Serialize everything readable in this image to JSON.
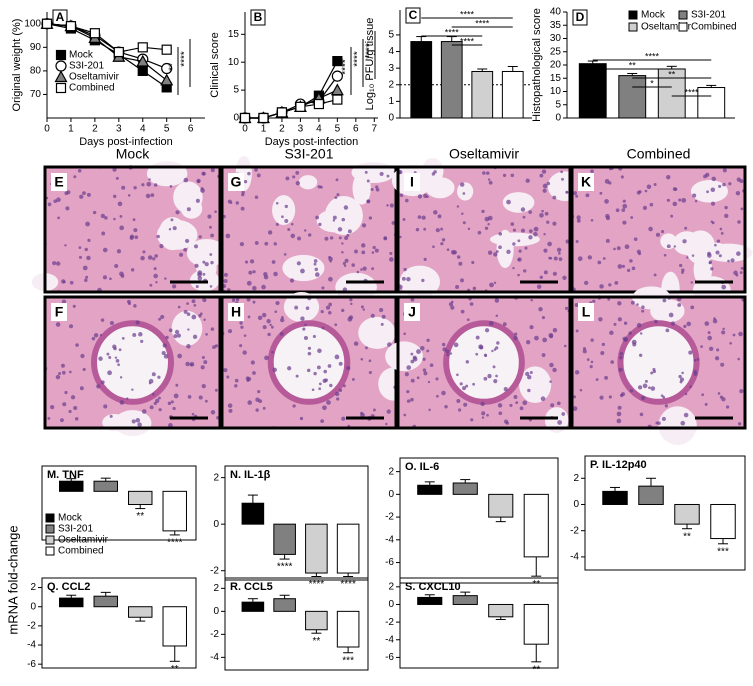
{
  "groups": [
    {
      "name": "Mock",
      "color": "#000000"
    },
    {
      "name": "S3I-201",
      "color": "#808080"
    },
    {
      "name": "Oseltamivir",
      "color": "#d0d0d0"
    },
    {
      "name": "Combined",
      "color": "#ffffff"
    }
  ],
  "histology": {
    "columns": [
      "Mock",
      "S3I-201",
      "Oseltamivir",
      "Combined"
    ],
    "panels": [
      [
        "E",
        "G",
        "I",
        "K"
      ],
      [
        "F",
        "H",
        "J",
        "L"
      ]
    ]
  },
  "bottom_ylabel": "mRNA fold-change",
  "chart_data": [
    {
      "type": "line",
      "panel": "A",
      "ylabel": "Original weight (%)",
      "xlabel": "Days post-infection",
      "x": [
        0,
        1,
        2,
        3,
        4,
        5
      ],
      "xlim": [
        0,
        6.6
      ],
      "xticks": [
        0,
        1,
        2,
        3,
        4,
        5,
        6
      ],
      "ylim": [
        60,
        105
      ],
      "yticks": [
        70,
        80,
        90,
        100
      ],
      "legend": "center-left",
      "series": [
        {
          "name": "Mock",
          "color": "#000000",
          "marker": "square-filled",
          "values": [
            100,
            98,
            93,
            87,
            80,
            73
          ]
        },
        {
          "name": "S3I-201",
          "color": "#000000",
          "marker": "circle-open",
          "values": [
            100,
            99,
            95,
            88,
            85,
            81
          ]
        },
        {
          "name": "Oseltamivir",
          "color": "#808080",
          "marker": "triangle-filled",
          "values": [
            100,
            99,
            94,
            86,
            84,
            76
          ]
        },
        {
          "name": "Combined",
          "color": "#000000",
          "marker": "square-open",
          "values": [
            100,
            99,
            96,
            88,
            90,
            89
          ]
        }
      ],
      "annotations": [
        "**",
        "****"
      ]
    },
    {
      "type": "line",
      "panel": "B",
      "ylabel": "Clinical score",
      "xlabel": "Days post-infection",
      "x": [
        0,
        1,
        2,
        3,
        4,
        5
      ],
      "xlim": [
        0,
        7.2
      ],
      "xticks": [
        0,
        1,
        2,
        3,
        4,
        5,
        6,
        7
      ],
      "ylim": [
        0,
        19
      ],
      "yticks": [
        0,
        5,
        10,
        15
      ],
      "series": [
        {
          "color": "#000000",
          "marker": "square-filled",
          "values": [
            0,
            0,
            1,
            2,
            4,
            10.2
          ]
        },
        {
          "color": "#000000",
          "marker": "circle-open",
          "values": [
            0,
            0,
            1,
            2.5,
            3,
            7.5
          ]
        },
        {
          "color": "#808080",
          "marker": "triangle-filled",
          "values": [
            0,
            0,
            1,
            2,
            3.5,
            5
          ]
        },
        {
          "color": "#000000",
          "marker": "square-open",
          "values": [
            0,
            0,
            1,
            2,
            2.5,
            3.3
          ]
        }
      ],
      "annotations": [
        "****",
        "****",
        "****"
      ]
    },
    {
      "type": "bar",
      "panel": "C",
      "ylabel": "Log₁₀ PFU/g tissue",
      "values": [
        4.6,
        4.6,
        2.8,
        2.8
      ],
      "errors": [
        0.3,
        0.3,
        0.15,
        0.3
      ],
      "ylim": [
        0,
        6.5
      ],
      "yticks": [
        0,
        1,
        2,
        3,
        4,
        5
      ],
      "ref_line": 2,
      "brackets": [
        {
          "between": [
            0,
            3
          ],
          "label": "****"
        },
        {
          "between": [
            1,
            3
          ],
          "label": "****"
        },
        {
          "between": [
            0,
            2
          ],
          "label": "****"
        },
        {
          "between": [
            1,
            2
          ],
          "label": "****"
        }
      ]
    },
    {
      "type": "bar",
      "panel": "D",
      "ylabel": "Histopathological score",
      "values": [
        20.5,
        16,
        18.5,
        11.5
      ],
      "errors": [
        1,
        0.8,
        1,
        0.8
      ],
      "ylim": [
        0,
        40
      ],
      "yticks": [
        0,
        5,
        10,
        15,
        20,
        25,
        30,
        35,
        40
      ],
      "legend": "top-right",
      "brackets": [
        {
          "between": [
            0,
            3
          ],
          "label": "****"
        },
        {
          "between": [
            0,
            2
          ],
          "label": "**"
        },
        {
          "between": [
            1,
            3
          ],
          "label": "**"
        },
        {
          "between": [
            1,
            2
          ],
          "label": "*"
        },
        {
          "between": [
            2,
            3
          ],
          "label": "****"
        }
      ]
    },
    {
      "type": "bar",
      "title": "M. TNF",
      "values": [
        1,
        1,
        -1.3,
        -3.9
      ],
      "errors": [
        0.25,
        0.3,
        0.4,
        0.4
      ],
      "ylim": [
        -4.8,
        2.5
      ],
      "sig": [
        null,
        null,
        "**",
        "****"
      ],
      "legend": "lower-left"
    },
    {
      "type": "bar",
      "title": "N. IL-1β",
      "values": [
        0.9,
        -1.3,
        -2.1,
        -2.1
      ],
      "errors": [
        0.35,
        0.2,
        0.15,
        0.15
      ],
      "ylim": [
        -2.4,
        2.5
      ],
      "yticks": [
        2,
        0,
        -2
      ],
      "sig": [
        null,
        "****",
        "****",
        "****"
      ]
    },
    {
      "type": "bar",
      "title": "O. IL-6",
      "values": [
        0.8,
        1,
        -2,
        -5.5
      ],
      "errors": [
        0.3,
        0.3,
        0.4,
        1.7
      ],
      "ylim": [
        -7.8,
        3.2
      ],
      "yticks": [
        2,
        0,
        -2,
        -4,
        -6
      ],
      "sig": [
        null,
        null,
        null,
        "**"
      ]
    },
    {
      "type": "bar",
      "title": "P. IL-12p40",
      "values": [
        1,
        1.4,
        -1.5,
        -2.6
      ],
      "errors": [
        0.3,
        0.6,
        0.35,
        0.4
      ],
      "ylim": [
        -5,
        3.7
      ],
      "yticks": [
        2,
        0,
        -2,
        -4
      ],
      "sig": [
        null,
        null,
        "**",
        "***"
      ]
    },
    {
      "type": "bar",
      "title": "Q. CCL2",
      "values": [
        0.9,
        1.1,
        -1.1,
        -4.1
      ],
      "errors": [
        0.3,
        0.4,
        0.4,
        1.6
      ],
      "ylim": [
        -6.4,
        3
      ],
      "yticks": [
        2,
        0,
        -2,
        -4,
        -6
      ],
      "sig": [
        null,
        null,
        null,
        "**"
      ]
    },
    {
      "type": "bar",
      "title": "R. CCL5",
      "values": [
        0.8,
        1.1,
        -1.6,
        -3.1
      ],
      "errors": [
        0.3,
        0.3,
        0.3,
        0.5
      ],
      "ylim": [
        -5.1,
        2.9
      ],
      "yticks": [
        2,
        0,
        -2,
        -4
      ],
      "sig": [
        null,
        null,
        "**",
        "***"
      ]
    },
    {
      "type": "bar",
      "title": "S. CXCL10",
      "values": [
        0.8,
        1,
        -1.4,
        -4.5
      ],
      "errors": [
        0.3,
        0.4,
        0.3,
        2
      ],
      "ylim": [
        -7.2,
        3
      ],
      "yticks": [
        2,
        0,
        -2,
        -4,
        -6
      ],
      "sig": [
        null,
        null,
        null,
        "**"
      ]
    }
  ]
}
